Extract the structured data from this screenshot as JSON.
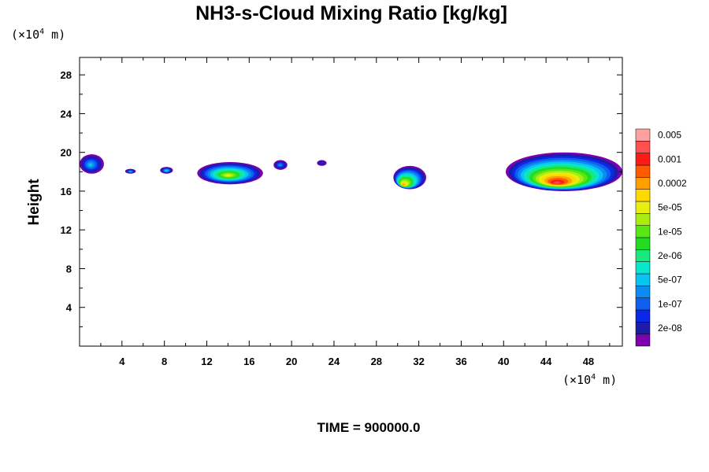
{
  "chart_data": {
    "type": "heatmap",
    "title": "NH3-s-Cloud Mixing Ratio [kg/kg]",
    "ylabel": "Height",
    "xlabel": "",
    "x_unit": {
      "prefix": "(×10",
      "exp": "4",
      "suffix": " m)"
    },
    "y_unit": {
      "prefix": "(×10",
      "exp": "4",
      "suffix": " m)"
    },
    "xlim": [
      0,
      51.2
    ],
    "ylim": [
      0,
      29.8
    ],
    "x_ticks": [
      4,
      8,
      12,
      16,
      20,
      24,
      28,
      32,
      36,
      40,
      44,
      48
    ],
    "y_ticks": [
      4,
      8,
      12,
      16,
      20,
      24,
      28
    ],
    "x_minor_ticks": [
      2,
      6,
      10,
      14,
      18,
      22,
      26,
      30,
      34,
      38,
      42,
      46,
      50
    ],
    "y_minor_ticks": [
      2,
      6,
      10,
      14,
      18,
      22,
      26
    ],
    "time_label": "TIME = 900000.0",
    "colorbar": {
      "colors": [
        "#7a00b0",
        "#1c1ca8",
        "#0a28e8",
        "#0e5ef0",
        "#0c8cf2",
        "#08c4f0",
        "#08e6cc",
        "#18e880",
        "#22dc22",
        "#58e614",
        "#a8ec10",
        "#e8ee10",
        "#ffd800",
        "#ffa000",
        "#ff5a00",
        "#ff1a1a",
        "#ff5050",
        "#ffa0a0"
      ],
      "labels": [
        "2e-08",
        "1e-07",
        "5e-07",
        "2e-06",
        "1e-05",
        "5e-05",
        "0.0002",
        "0.001",
        "0.005"
      ]
    },
    "clouds": [
      {
        "x": [
          0,
          2.3
        ],
        "y": [
          17.8,
          19.8
        ],
        "peak": 5,
        "core": [
          1.0,
          18.7
        ]
      },
      {
        "x": [
          4.3,
          5.3
        ],
        "y": [
          17.8,
          18.3
        ],
        "peak": 5,
        "core": [
          4.8,
          18.0
        ]
      },
      {
        "x": [
          7.6,
          8.8
        ],
        "y": [
          17.8,
          18.5
        ],
        "peak": 6,
        "core": [
          8.2,
          18.1
        ]
      },
      {
        "x": [
          11.1,
          17.3
        ],
        "y": [
          16.7,
          19.0
        ],
        "peak": 11,
        "core": [
          14.0,
          17.6
        ]
      },
      {
        "x": [
          18.3,
          19.6
        ],
        "y": [
          18.2,
          19.2
        ],
        "peak": 4,
        "core": [
          18.9,
          18.7
        ]
      },
      {
        "x": [
          22.4,
          23.3
        ],
        "y": [
          18.6,
          19.2
        ],
        "peak": 2,
        "core": [
          22.8,
          18.9
        ]
      },
      {
        "x": [
          29.6,
          32.7
        ],
        "y": [
          16.2,
          18.6
        ],
        "peak": 13,
        "core": [
          30.5,
          16.6
        ]
      },
      {
        "x": [
          40.2,
          51.2
        ],
        "y": [
          16.0,
          20.0
        ],
        "peak": 16,
        "core": [
          45.0,
          16.8
        ]
      }
    ]
  }
}
